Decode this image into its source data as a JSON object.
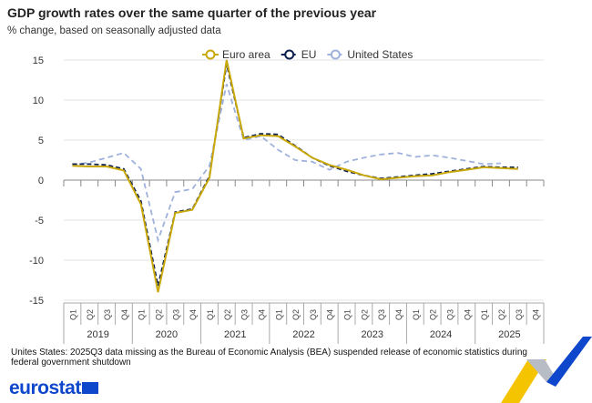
{
  "title": "GDP growth rates over the same quarter of the previous year",
  "subtitle": "% change, based on seasonally adjusted data",
  "note": "Unites States: 2025Q3 data missing as the Bureau of Economic Analysis (BEA) suspended release of economic statistics during federal government shutdown",
  "logo": "eurostat",
  "chart_data": {
    "type": "line",
    "title": "GDP growth rates over the same quarter of the previous year",
    "ylim": [
      -15,
      15
    ],
    "yticks": [
      15,
      10,
      5,
      0,
      -5,
      -10,
      -15
    ],
    "years": [
      "2019",
      "2020",
      "2021",
      "2022",
      "2023",
      "2024",
      "2025"
    ],
    "quarters": [
      "Q1",
      "Q2",
      "Q3",
      "Q4"
    ],
    "grid": true,
    "legend": "top",
    "series": [
      {
        "name": "Euro area",
        "color": "#c9a80a",
        "dash": "",
        "values": [
          1.8,
          1.7,
          1.7,
          1.2,
          -3.0,
          -14.0,
          -4.1,
          -3.7,
          0.3,
          15.0,
          5.2,
          5.6,
          5.5,
          4.2,
          2.8,
          1.9,
          1.3,
          0.6,
          0.1,
          0.3,
          0.5,
          0.6,
          1.0,
          1.3,
          1.6,
          1.5,
          1.4,
          null
        ]
      },
      {
        "name": "EU",
        "color": "#0b1f4f",
        "dash": "5,3",
        "values": [
          2.0,
          2.0,
          1.9,
          1.4,
          -2.6,
          -13.2,
          -4.0,
          -3.6,
          0.5,
          14.5,
          5.3,
          5.8,
          5.7,
          4.3,
          2.8,
          1.8,
          1.1,
          0.6,
          0.2,
          0.4,
          0.6,
          0.8,
          1.1,
          1.4,
          1.7,
          1.6,
          1.6,
          null
        ]
      },
      {
        "name": "United States",
        "color": "#9fb2dc",
        "dash": "6,4",
        "values": [
          1.9,
          2.2,
          2.8,
          3.4,
          1.4,
          -7.5,
          -1.5,
          -1.1,
          1.8,
          12.0,
          5.0,
          5.5,
          3.8,
          2.5,
          2.3,
          1.3,
          2.3,
          2.8,
          3.2,
          3.4,
          2.9,
          3.1,
          2.8,
          2.4,
          2.0,
          2.1,
          null,
          null
        ]
      }
    ]
  }
}
